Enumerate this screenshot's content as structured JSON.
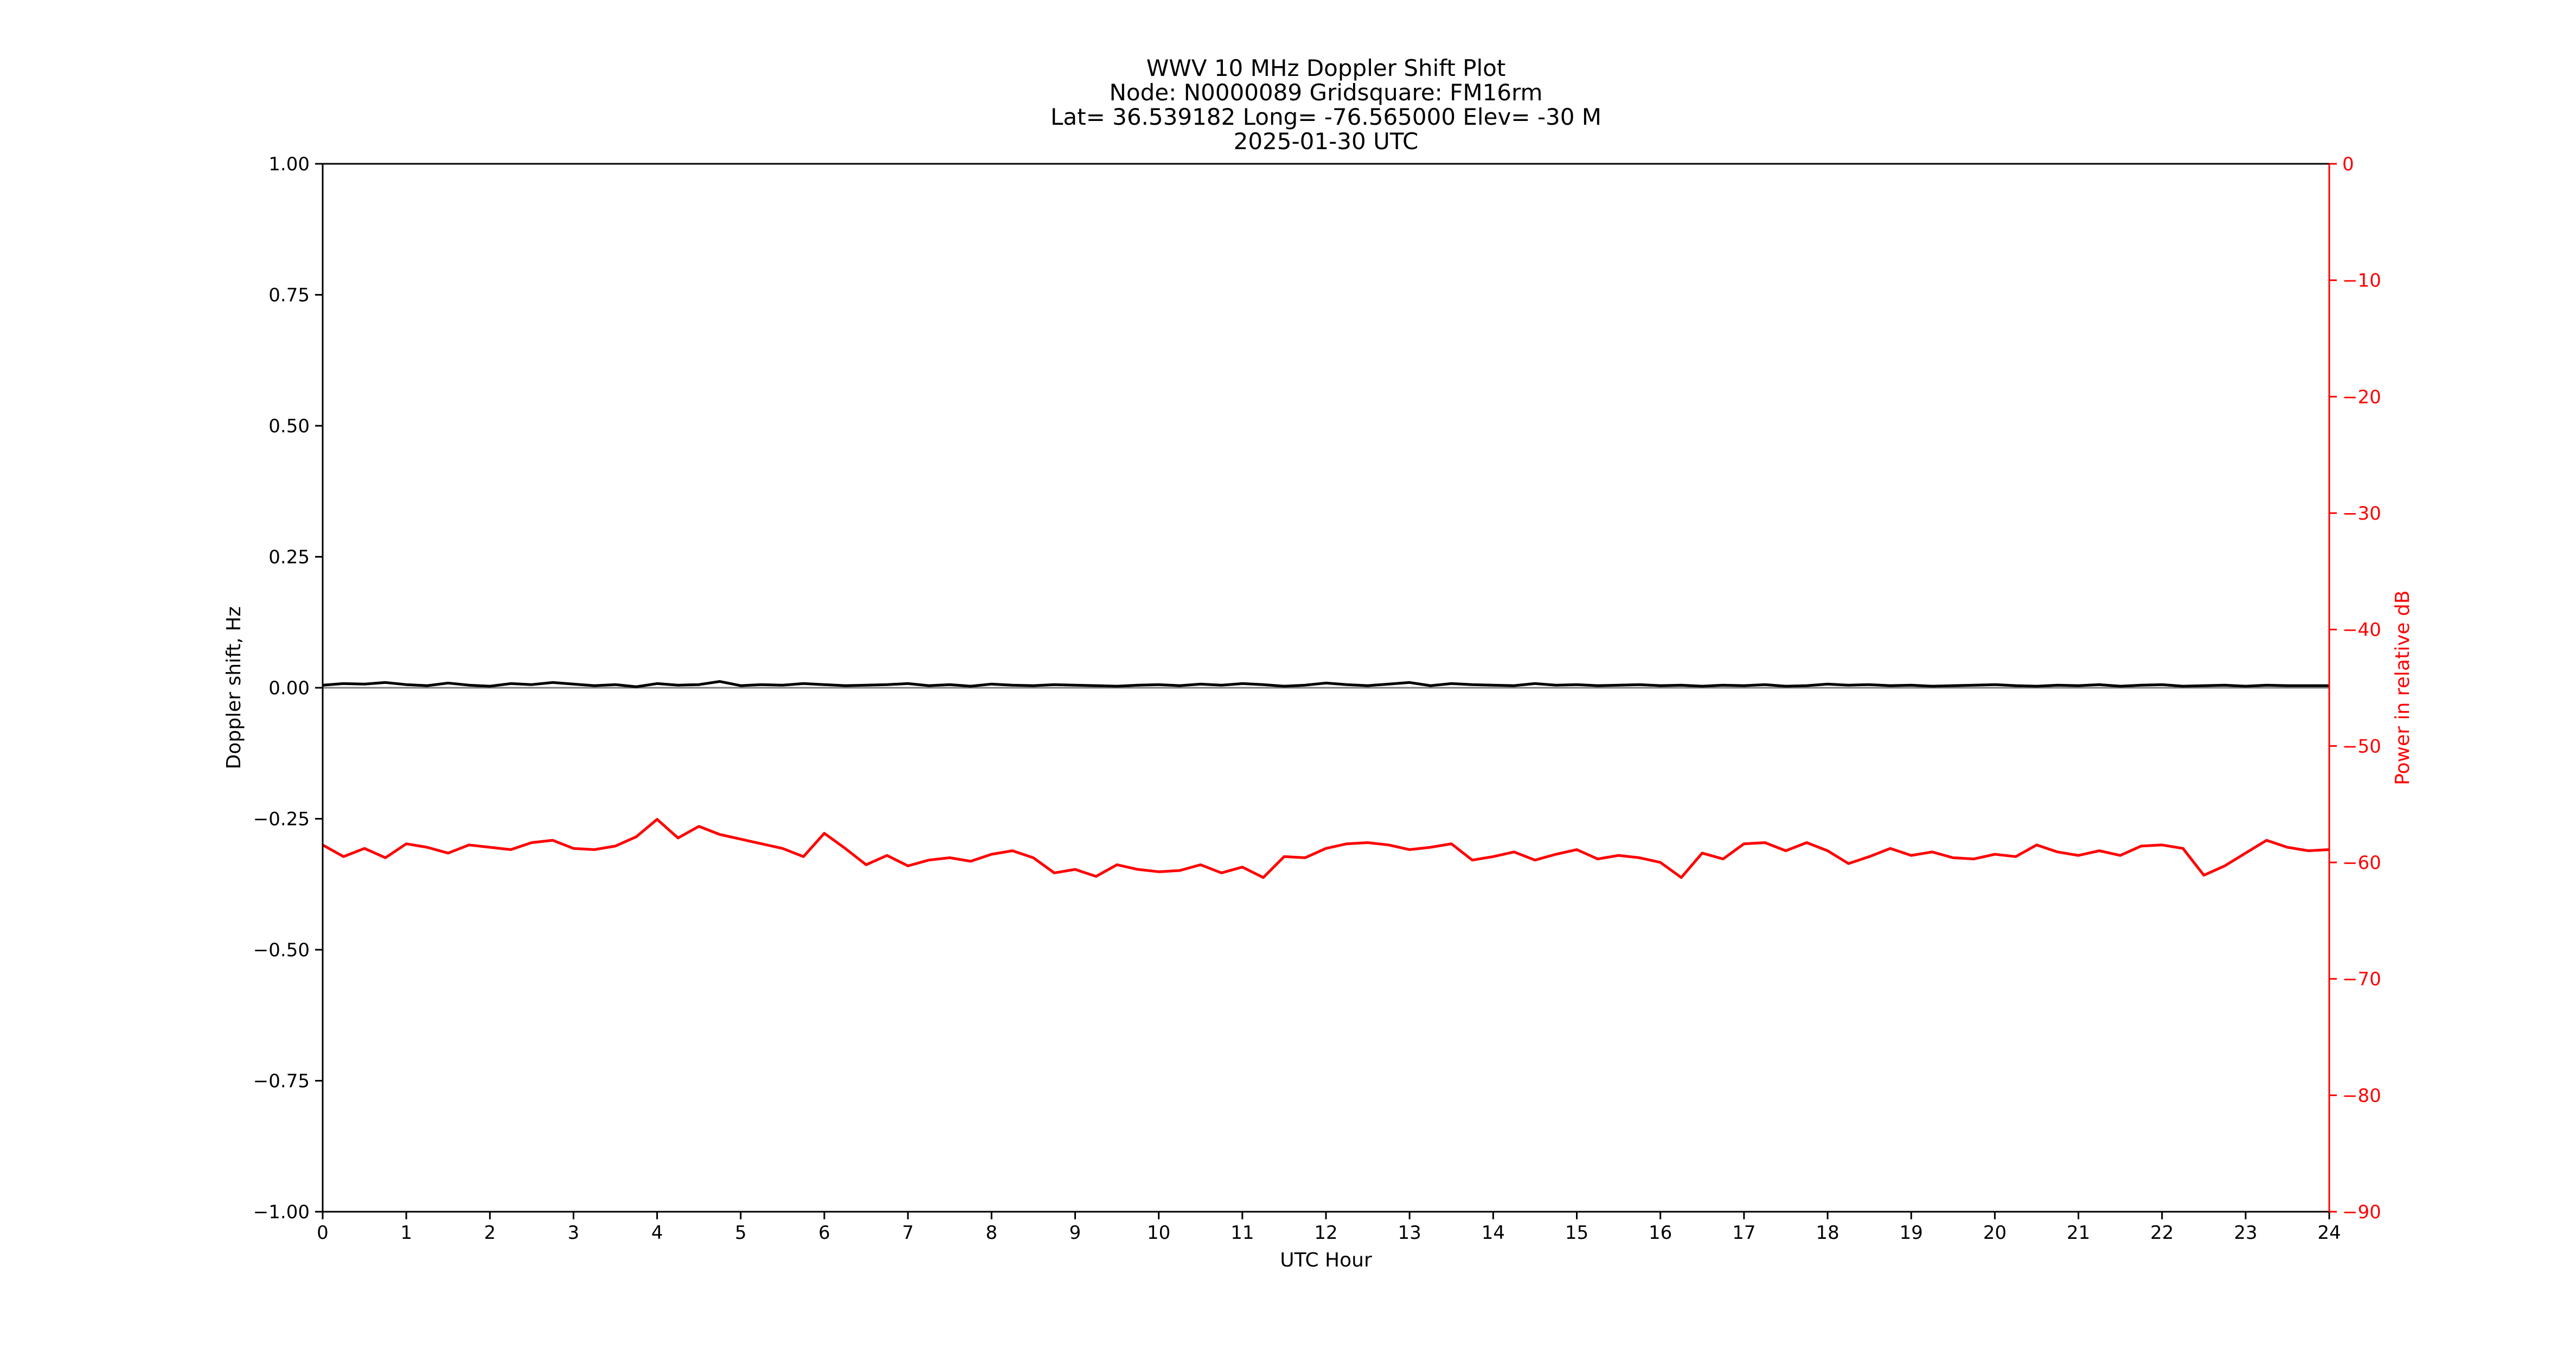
{
  "colors": {
    "doppler_line": "#000000",
    "power_line": "#ff0000",
    "zero_line": "#7f7f7f",
    "left_axis": "#000000",
    "right_axis": "#ff0000"
  },
  "chart_data": {
    "type": "line",
    "title_lines": [
      "WWV 10 MHz Doppler Shift Plot",
      "Node:  N0000089     Gridsquare:  FM16rm",
      "Lat= 36.539182    Long= -76.565000    Elev= -30 M",
      "2025-01-30  UTC"
    ],
    "xlabel": "UTC Hour",
    "ylabel": "Doppler shift, Hz",
    "y2label": "Power in relative dB",
    "xlim": [
      0,
      24
    ],
    "ylim": [
      -1.0,
      1.0
    ],
    "y2lim": [
      0,
      -90
    ],
    "xticks": [
      0,
      1,
      2,
      3,
      4,
      5,
      6,
      7,
      8,
      9,
      10,
      11,
      12,
      13,
      14,
      15,
      16,
      17,
      18,
      19,
      20,
      21,
      22,
      23,
      24
    ],
    "xtick_labels": [
      "0",
      "1",
      "2",
      "3",
      "4",
      "5",
      "6",
      "7",
      "8",
      "9",
      "10",
      "11",
      "12",
      "13",
      "14",
      "15",
      "16",
      "17",
      "18",
      "19",
      "20",
      "21",
      "22",
      "23",
      "24"
    ],
    "yticks": [
      1.0,
      0.75,
      0.5,
      0.25,
      0.0,
      -0.25,
      -0.5,
      -0.75,
      -1.0
    ],
    "ytick_labels": [
      "1.00",
      "0.75",
      "0.50",
      "0.25",
      "0.00",
      "−0.25",
      "−0.50",
      "−0.75",
      "−1.00"
    ],
    "y2ticks": [
      0,
      -10,
      -20,
      -30,
      -40,
      -50,
      -60,
      -70,
      -80,
      -90
    ],
    "y2tick_labels": [
      "0",
      "−10",
      "−20",
      "−30",
      "−40",
      "−50",
      "−60",
      "−70",
      "−80",
      "−90"
    ],
    "grid": false,
    "series": [
      {
        "axis": "left",
        "x": [
          0,
          0.25,
          0.5,
          0.75,
          1,
          1.25,
          1.5,
          1.75,
          2,
          2.25,
          2.5,
          2.75,
          3,
          3.25,
          3.5,
          3.75,
          4,
          4.25,
          4.5,
          4.75,
          5,
          5.25,
          5.5,
          5.75,
          6,
          6.25,
          6.5,
          6.75,
          7,
          7.25,
          7.5,
          7.75,
          8,
          8.25,
          8.5,
          8.75,
          9,
          9.25,
          9.5,
          9.75,
          10,
          10.25,
          10.5,
          10.75,
          11,
          11.25,
          11.5,
          11.75,
          12,
          12.25,
          12.5,
          12.75,
          13,
          13.25,
          13.5,
          13.75,
          14,
          14.25,
          14.5,
          14.75,
          15,
          15.25,
          15.5,
          15.75,
          16,
          16.25,
          16.5,
          16.75,
          17,
          17.25,
          17.5,
          17.75,
          18,
          18.25,
          18.5,
          18.75,
          19,
          19.25,
          19.5,
          19.75,
          20,
          20.25,
          20.5,
          20.75,
          21,
          21.25,
          21.5,
          21.75,
          22,
          22.25,
          22.5,
          22.75,
          23,
          23.25,
          23.5,
          23.75,
          24
        ],
        "y": [
          0.005,
          0.008,
          0.007,
          0.01,
          0.006,
          0.004,
          0.009,
          0.005,
          0.003,
          0.008,
          0.006,
          0.01,
          0.007,
          0.004,
          0.006,
          0.002,
          0.008,
          0.005,
          0.006,
          0.012,
          0.004,
          0.006,
          0.005,
          0.008,
          0.006,
          0.004,
          0.005,
          0.006,
          0.008,
          0.004,
          0.006,
          0.003,
          0.007,
          0.005,
          0.004,
          0.006,
          0.005,
          0.004,
          0.003,
          0.005,
          0.006,
          0.004,
          0.007,
          0.005,
          0.008,
          0.006,
          0.003,
          0.005,
          0.009,
          0.006,
          0.004,
          0.007,
          0.01,
          0.004,
          0.008,
          0.006,
          0.005,
          0.004,
          0.008,
          0.005,
          0.006,
          0.004,
          0.005,
          0.006,
          0.004,
          0.005,
          0.003,
          0.005,
          0.004,
          0.006,
          0.003,
          0.004,
          0.007,
          0.005,
          0.006,
          0.004,
          0.005,
          0.003,
          0.004,
          0.005,
          0.006,
          0.004,
          0.003,
          0.005,
          0.004,
          0.006,
          0.003,
          0.005,
          0.006,
          0.003,
          0.004,
          0.005,
          0.003,
          0.005,
          0.004,
          0.004,
          0.004
        ]
      },
      {
        "axis": "right",
        "x": [
          0,
          0.25,
          0.5,
          0.75,
          1,
          1.25,
          1.5,
          1.75,
          2,
          2.25,
          2.5,
          2.75,
          3,
          3.25,
          3.5,
          3.75,
          4,
          4.25,
          4.5,
          4.75,
          5,
          5.25,
          5.5,
          5.75,
          6,
          6.25,
          6.5,
          6.75,
          7,
          7.25,
          7.5,
          7.75,
          8,
          8.25,
          8.5,
          8.75,
          9,
          9.25,
          9.5,
          9.75,
          10,
          10.25,
          10.5,
          10.75,
          11,
          11.25,
          11.5,
          11.75,
          12,
          12.25,
          12.5,
          12.75,
          13,
          13.25,
          13.5,
          13.75,
          14,
          14.25,
          14.5,
          14.75,
          15,
          15.25,
          15.5,
          15.75,
          16,
          16.25,
          16.5,
          16.75,
          17,
          17.25,
          17.5,
          17.75,
          18,
          18.25,
          18.5,
          18.75,
          19,
          19.25,
          19.5,
          19.75,
          20,
          20.25,
          20.5,
          20.75,
          21,
          21.25,
          21.5,
          21.75,
          22,
          22.25,
          22.5,
          22.75,
          23,
          23.25,
          23.5,
          23.75,
          24
        ],
        "y": [
          -58.5,
          -59.5,
          -58.8,
          -59.6,
          -58.4,
          -58.7,
          -59.2,
          -58.5,
          -58.7,
          -58.9,
          -58.3,
          -58.1,
          -58.8,
          -58.9,
          -58.6,
          -57.8,
          -56.3,
          -57.9,
          -56.9,
          -57.6,
          -58.0,
          -58.4,
          -58.8,
          -59.5,
          -57.5,
          -58.8,
          -60.2,
          -59.4,
          -60.3,
          -59.8,
          -59.6,
          -59.9,
          -59.3,
          -59.0,
          -59.6,
          -60.9,
          -60.6,
          -61.2,
          -60.2,
          -60.6,
          -60.8,
          -60.7,
          -60.2,
          -60.9,
          -60.4,
          -61.3,
          -59.5,
          -59.6,
          -58.8,
          -58.4,
          -58.3,
          -58.5,
          -58.9,
          -58.7,
          -58.4,
          -59.8,
          -59.5,
          -59.1,
          -59.8,
          -59.3,
          -58.9,
          -59.7,
          -59.4,
          -59.6,
          -60.0,
          -61.3,
          -59.2,
          -59.7,
          -58.4,
          -58.3,
          -59.0,
          -58.3,
          -59.0,
          -60.1,
          -59.5,
          -58.8,
          -59.4,
          -59.1,
          -59.6,
          -59.7,
          -59.3,
          -59.5,
          -58.5,
          -59.1,
          -59.4,
          -59.0,
          -59.4,
          -58.6,
          -58.5,
          -58.8,
          -61.1,
          -60.3,
          -59.2,
          -58.1,
          -58.7,
          -59.0,
          -58.9
        ]
      }
    ]
  }
}
